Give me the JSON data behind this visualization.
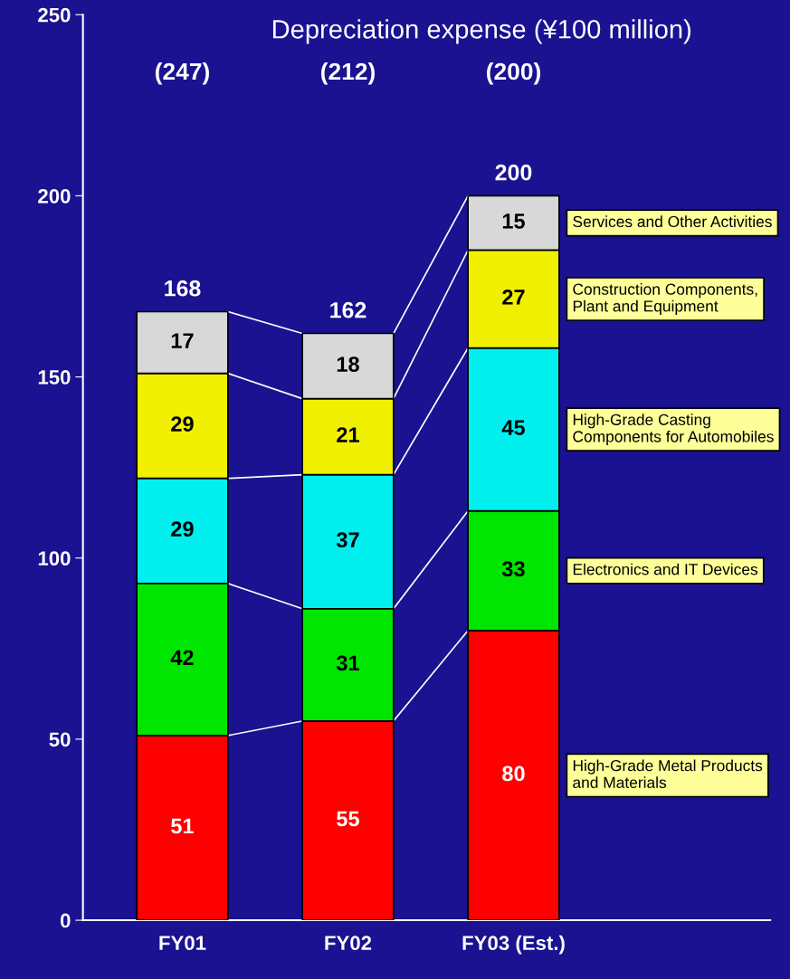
{
  "chart_data": {
    "type": "bar",
    "stacked": true,
    "title": "Depreciation expense (¥100 million)",
    "categories": [
      "FY01",
      "FY02",
      "FY03 (Est.)"
    ],
    "series": [
      {
        "name": "High-Grade Metal Products and Materials",
        "color": "#ff0000",
        "values": [
          51,
          55,
          80
        ]
      },
      {
        "name": "Electronics and IT Devices",
        "color": "#00e600",
        "values": [
          42,
          31,
          33
        ]
      },
      {
        "name": "High-Grade Casting Components for Automobiles",
        "color": "#00f0f0",
        "values": [
          29,
          37,
          45
        ]
      },
      {
        "name": "Construction Components, Plant and Equipment",
        "color": "#f0f000",
        "values": [
          29,
          21,
          27
        ]
      },
      {
        "name": "Services and Other Activities",
        "color": "#d8d8d8",
        "values": [
          17,
          18,
          15
        ]
      }
    ],
    "totals": [
      "168",
      "162",
      "200"
    ],
    "annotations": [
      "(247)",
      "(212)",
      "(200)"
    ],
    "data_labels": true,
    "legend": false,
    "grid": false,
    "ylim": [
      0,
      250
    ],
    "yticks": [
      0,
      50,
      100,
      150,
      200,
      250
    ]
  }
}
